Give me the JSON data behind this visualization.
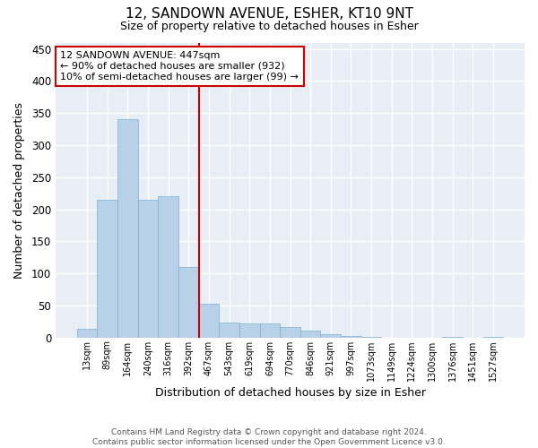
{
  "title": "12, SANDOWN AVENUE, ESHER, KT10 9NT",
  "subtitle": "Size of property relative to detached houses in Esher",
  "xlabel": "Distribution of detached houses by size in Esher",
  "ylabel": "Number of detached properties",
  "footer_line1": "Contains HM Land Registry data © Crown copyright and database right 2024.",
  "footer_line2": "Contains public sector information licensed under the Open Government Licence v3.0.",
  "categories": [
    "13sqm",
    "89sqm",
    "164sqm",
    "240sqm",
    "316sqm",
    "392sqm",
    "467sqm",
    "543sqm",
    "619sqm",
    "694sqm",
    "770sqm",
    "846sqm",
    "921sqm",
    "997sqm",
    "1073sqm",
    "1149sqm",
    "1224sqm",
    "1300sqm",
    "1376sqm",
    "1451sqm",
    "1527sqm"
  ],
  "values": [
    13,
    215,
    340,
    215,
    220,
    110,
    52,
    23,
    22,
    22,
    16,
    11,
    5,
    2,
    1,
    0,
    0,
    0,
    1,
    0,
    1
  ],
  "bar_color": "#b8d0e8",
  "bar_edgecolor": "#7bafd4",
  "background_color": "#e8eef5",
  "gridcolor": "#ffffff",
  "vline_x_index": 5.5,
  "vline_color": "#cc0000",
  "annotation_text": "12 SANDOWN AVENUE: 447sqm\n← 90% of detached houses are smaller (932)\n10% of semi-detached houses are larger (99) →",
  "annotation_box_edgecolor": "#cc0000",
  "ylim": [
    0,
    460
  ],
  "yticks": [
    0,
    50,
    100,
    150,
    200,
    250,
    300,
    350,
    400,
    450
  ]
}
